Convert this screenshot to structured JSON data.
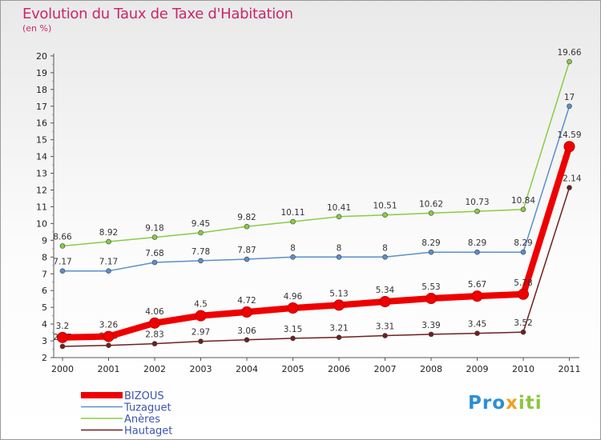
{
  "title": "Evolution du Taux de Taxe d'Habitation",
  "subtitle": "(en %)",
  "logo": {
    "part1": "Pro",
    "part2": "x",
    "part3": "iti"
  },
  "chart_data": {
    "type": "line",
    "x": [
      "2000",
      "2001",
      "2002",
      "2003",
      "2004",
      "2005",
      "2006",
      "2007",
      "2008",
      "2009",
      "2010",
      "2011"
    ],
    "ylim": [
      2,
      20
    ],
    "yticks": [
      2,
      3,
      4,
      5,
      6,
      7,
      8,
      9,
      10,
      11,
      12,
      13,
      14,
      15,
      16,
      17,
      18,
      19,
      20
    ],
    "grid": false,
    "legend_position": "bottom-left",
    "series": [
      {
        "name": "Hautaget",
        "color": "#6e1f1f",
        "values": [
          2.67,
          2.73,
          2.83,
          2.97,
          3.06,
          3.15,
          3.21,
          3.31,
          3.39,
          3.45,
          3.52,
          12.14
        ],
        "labels": [
          "2.67",
          "2.73",
          "2.83",
          "2.97",
          "3.06",
          "3.15",
          "3.21",
          "3.31",
          "3.39",
          "3.45",
          "3.52",
          "12.14"
        ]
      },
      {
        "name": "Anères",
        "color": "#88cc44",
        "values": [
          8.66,
          8.92,
          9.18,
          9.45,
          9.82,
          10.11,
          10.41,
          10.51,
          10.62,
          10.73,
          10.84,
          19.66
        ],
        "labels": [
          "8.66",
          "8.92",
          "9.18",
          "9.45",
          "9.82",
          "10.11",
          "10.41",
          "10.51",
          "10.62",
          "10.73",
          "10.84",
          "19.66"
        ]
      },
      {
        "name": "Tuzaguet",
        "color": "#5b8fc7",
        "values": [
          7.17,
          7.17,
          7.68,
          7.78,
          7.87,
          8,
          8,
          8,
          8.29,
          8.29,
          8.29,
          17
        ],
        "labels": [
          "7.17",
          "7.17",
          "7.68",
          "7.78",
          "7.87",
          "8",
          "8",
          "8",
          "8.29",
          "8.29",
          "8.29",
          "17"
        ]
      },
      {
        "name": "BIZOUS",
        "color": "#ee0000",
        "values": [
          3.2,
          3.26,
          4.06,
          4.5,
          4.72,
          4.96,
          5.13,
          5.34,
          5.53,
          5.67,
          5.78,
          14.59
        ],
        "labels": [
          "3.2",
          "3.26",
          "4.06",
          "4.5",
          "4.72",
          "4.96",
          "5.13",
          "5.34",
          "5.53",
          "5.67",
          "5.78",
          "14.59"
        ]
      }
    ],
    "legend": [
      "BIZOUS",
      "Tuzaguet",
      "Anères",
      "Hautaget"
    ]
  }
}
